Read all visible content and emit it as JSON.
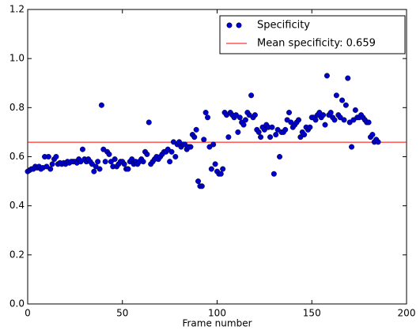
{
  "chart_data": {
    "type": "scatter",
    "xlabel": "Frame number",
    "xlim": [
      0,
      200
    ],
    "xticks": [
      0,
      50,
      100,
      150,
      200
    ],
    "ylim": [
      0,
      1.2
    ],
    "yticks": [
      {
        "value": 0,
        "label": "0.0"
      },
      0.2,
      0.4,
      0.6,
      0.8,
      {
        "value": 1,
        "label": "1.0"
      },
      1.2
    ],
    "legend": "upper right",
    "x": [
      0,
      1,
      2,
      3,
      4,
      5,
      6,
      7,
      8,
      9,
      10,
      11,
      12,
      13,
      14,
      15,
      16,
      17,
      18,
      19,
      20,
      21,
      22,
      23,
      24,
      25,
      26,
      27,
      28,
      29,
      30,
      31,
      32,
      33,
      34,
      35,
      36,
      37,
      38,
      39,
      40,
      41,
      42,
      43,
      44,
      45,
      46,
      47,
      48,
      49,
      50,
      51,
      52,
      53,
      54,
      55,
      56,
      57,
      58,
      59,
      60,
      61,
      62,
      63,
      64,
      65,
      66,
      67,
      68,
      69,
      70,
      71,
      72,
      73,
      74,
      75,
      76,
      77,
      78,
      79,
      80,
      81,
      82,
      83,
      84,
      85,
      86,
      87,
      88,
      89,
      90,
      91,
      92,
      93,
      94,
      95,
      96,
      97,
      98,
      99,
      100,
      101,
      102,
      103,
      104,
      105,
      106,
      107,
      108,
      109,
      110,
      111,
      112,
      113,
      114,
      115,
      116,
      117,
      118,
      119,
      120,
      121,
      122,
      123,
      124,
      125,
      126,
      127,
      128,
      129,
      130,
      131,
      132,
      133,
      134,
      135,
      136,
      137,
      138,
      139,
      140,
      141,
      142,
      143,
      144,
      145,
      146,
      147,
      148,
      149,
      150,
      151,
      152,
      153,
      154,
      155,
      156,
      157,
      158,
      159,
      160,
      161,
      162,
      163,
      164,
      165,
      166,
      167,
      168,
      169,
      170,
      171,
      172,
      173,
      174,
      175,
      176,
      177,
      178,
      179,
      180,
      181,
      182,
      183,
      184,
      185
    ],
    "series": [
      {
        "name": "Specificity",
        "color": "#0000cc",
        "values": [
          0.54,
          0.545,
          0.55,
          0.55,
          0.56,
          0.555,
          0.56,
          0.55,
          0.555,
          0.6,
          0.56,
          0.6,
          0.55,
          0.57,
          0.59,
          0.6,
          0.57,
          0.575,
          0.57,
          0.575,
          0.57,
          0.58,
          0.575,
          0.58,
          0.58,
          0.58,
          0.575,
          0.59,
          0.58,
          0.63,
          0.59,
          0.58,
          0.59,
          0.58,
          0.57,
          0.54,
          0.56,
          0.58,
          0.55,
          0.81,
          0.63,
          0.58,
          0.62,
          0.61,
          0.58,
          0.56,
          0.59,
          0.56,
          0.57,
          0.58,
          0.58,
          0.57,
          0.55,
          0.55,
          0.58,
          0.59,
          0.57,
          0.58,
          0.57,
          0.58,
          0.59,
          0.58,
          0.62,
          0.61,
          0.74,
          0.57,
          0.58,
          0.59,
          0.6,
          0.59,
          0.6,
          0.61,
          0.62,
          0.62,
          0.63,
          0.58,
          0.62,
          0.66,
          0.6,
          0.65,
          0.66,
          0.64,
          0.65,
          0.65,
          0.63,
          0.64,
          0.64,
          0.69,
          0.68,
          0.71,
          0.5,
          0.48,
          0.48,
          0.67,
          0.78,
          0.76,
          0.64,
          0.55,
          0.65,
          0.57,
          0.54,
          0.53,
          0.53,
          0.55,
          0.78,
          0.77,
          0.68,
          0.78,
          0.77,
          0.76,
          0.77,
          0.7,
          0.76,
          0.74,
          0.73,
          0.75,
          0.78,
          0.77,
          0.85,
          0.76,
          0.77,
          0.71,
          0.7,
          0.68,
          0.72,
          0.71,
          0.73,
          0.72,
          0.68,
          0.72,
          0.53,
          0.69,
          0.71,
          0.6,
          0.7,
          0.7,
          0.71,
          0.75,
          0.78,
          0.74,
          0.72,
          0.73,
          0.74,
          0.75,
          0.68,
          0.7,
          0.69,
          0.72,
          0.71,
          0.72,
          0.76,
          0.76,
          0.75,
          0.77,
          0.78,
          0.76,
          0.77,
          0.73,
          0.93,
          0.77,
          0.78,
          0.76,
          0.75,
          0.85,
          0.77,
          0.76,
          0.83,
          0.75,
          0.81,
          0.92,
          0.74,
          0.64,
          0.75,
          0.79,
          0.76,
          0.76,
          0.77,
          0.76,
          0.75,
          0.74,
          0.74,
          0.68,
          0.69,
          0.66,
          0.67,
          0.66
        ]
      }
    ],
    "mean_line": {
      "name": "Mean specificity: 0.659",
      "value": 0.659,
      "color": "#ff0000"
    }
  }
}
